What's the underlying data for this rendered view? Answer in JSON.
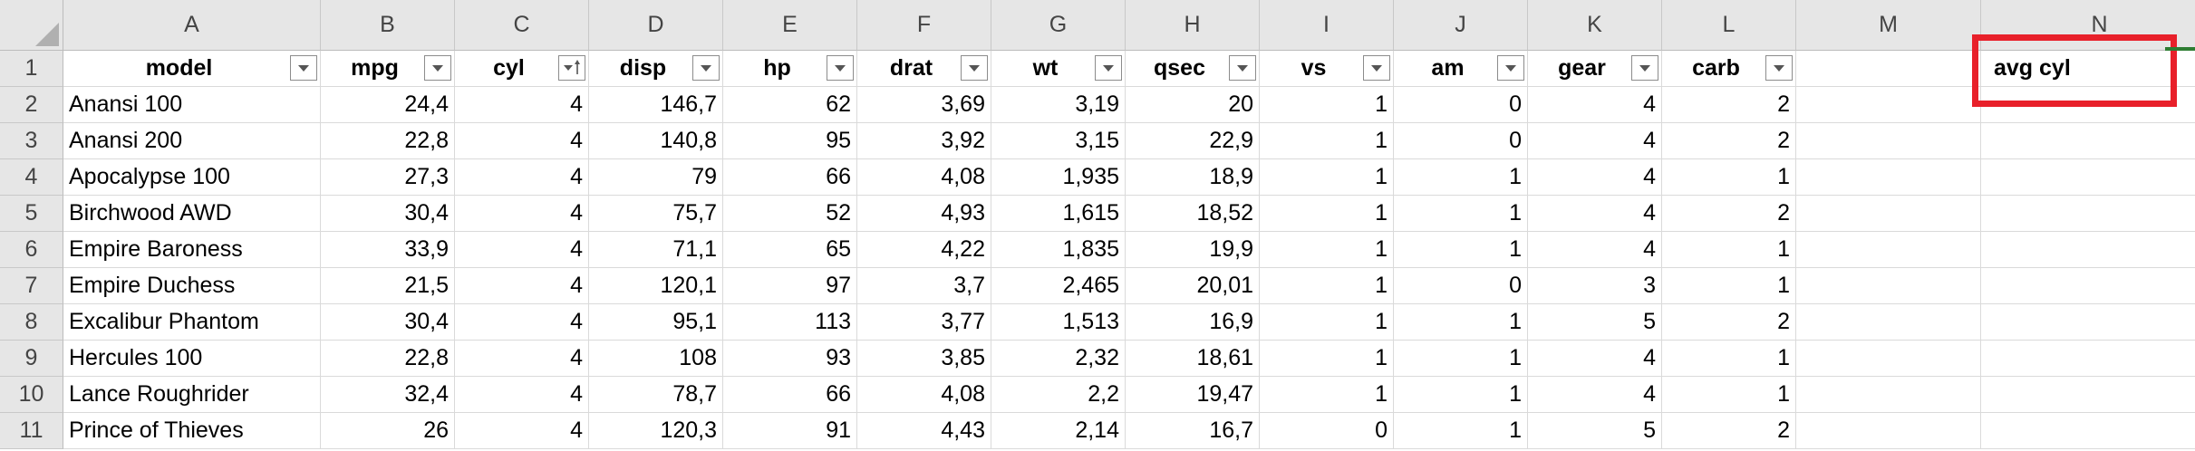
{
  "columns": [
    "A",
    "B",
    "C",
    "D",
    "E",
    "F",
    "G",
    "H",
    "I",
    "J",
    "K",
    "L",
    "M",
    "N"
  ],
  "row_numbers": [
    "1",
    "2",
    "3",
    "4",
    "5",
    "6",
    "7",
    "8",
    "9",
    "10",
    "11"
  ],
  "headers": [
    "model",
    "mpg",
    "cyl",
    "disp",
    "hp",
    "drat",
    "wt",
    "qsec",
    "vs",
    "am",
    "gear",
    "carb"
  ],
  "sorted_header": "cyl",
  "n1_value": "avg cyl",
  "rows": [
    [
      "Anansi 100",
      "24,4",
      "4",
      "146,7",
      "62",
      "3,69",
      "3,19",
      "20",
      "1",
      "0",
      "4",
      "2"
    ],
    [
      "Anansi 200",
      "22,8",
      "4",
      "140,8",
      "95",
      "3,92",
      "3,15",
      "22,9",
      "1",
      "0",
      "4",
      "2"
    ],
    [
      "Apocalypse 100",
      "27,3",
      "4",
      "79",
      "66",
      "4,08",
      "1,935",
      "18,9",
      "1",
      "1",
      "4",
      "1"
    ],
    [
      "Birchwood AWD",
      "30,4",
      "4",
      "75,7",
      "52",
      "4,93",
      "1,615",
      "18,52",
      "1",
      "1",
      "4",
      "2"
    ],
    [
      "Empire Baroness",
      "33,9",
      "4",
      "71,1",
      "65",
      "4,22",
      "1,835",
      "19,9",
      "1",
      "1",
      "4",
      "1"
    ],
    [
      "Empire Duchess",
      "21,5",
      "4",
      "120,1",
      "97",
      "3,7",
      "2,465",
      "20,01",
      "1",
      "0",
      "3",
      "1"
    ],
    [
      "Excalibur Phantom",
      "30,4",
      "4",
      "95,1",
      "113",
      "3,77",
      "1,513",
      "16,9",
      "1",
      "1",
      "5",
      "2"
    ],
    [
      "Hercules 100",
      "22,8",
      "4",
      "108",
      "93",
      "3,85",
      "2,32",
      "18,61",
      "1",
      "1",
      "4",
      "1"
    ],
    [
      "Lance Roughrider",
      "32,4",
      "4",
      "78,7",
      "66",
      "4,08",
      "2,2",
      "19,47",
      "1",
      "1",
      "4",
      "1"
    ],
    [
      "Prince of Thieves",
      "26",
      "4",
      "120,3",
      "91",
      "4,43",
      "2,14",
      "16,7",
      "0",
      "1",
      "5",
      "2"
    ]
  ],
  "colors": {
    "highlight": "#e8202a",
    "header_bg": "#e6e6e6",
    "gridline": "#dadada"
  }
}
